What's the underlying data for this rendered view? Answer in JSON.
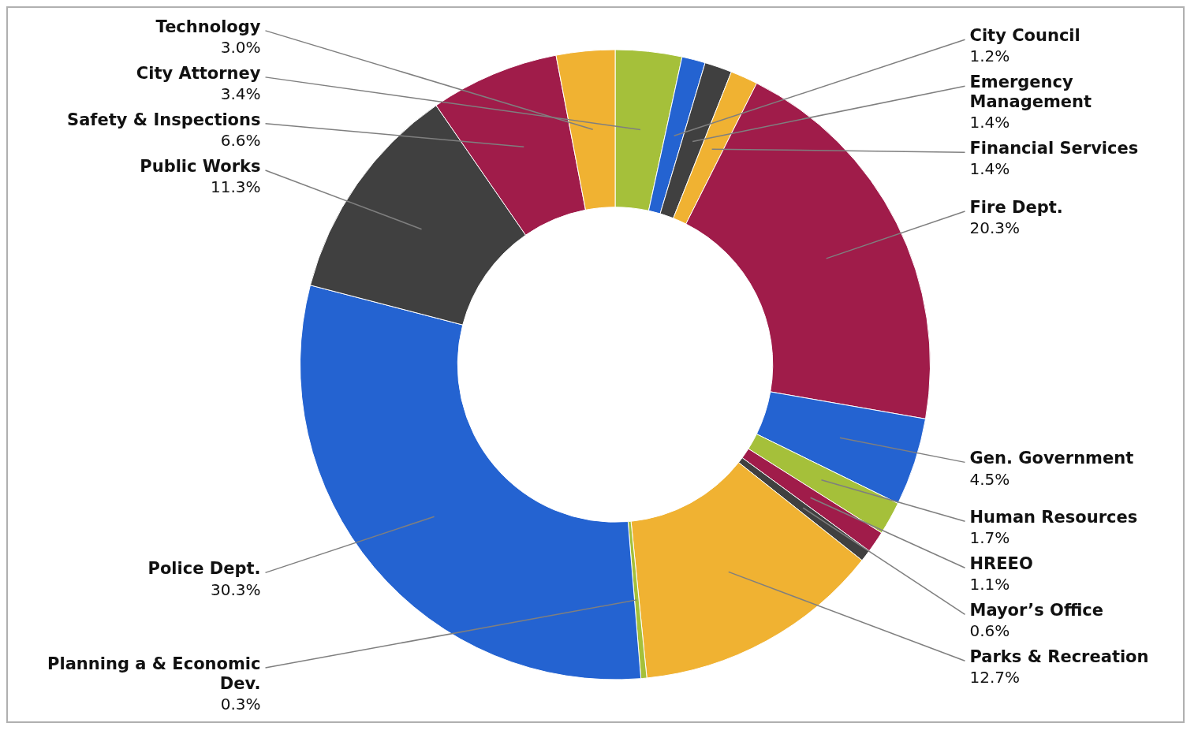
{
  "chart_data": {
    "type": "donut",
    "categories": [
      "City Attorney",
      "City Council",
      "Emergency Management",
      "Financial Services",
      "Fire Dept.",
      "Gen. Government",
      "Human Resources",
      "HREEO",
      "Mayor’s Office",
      "Parks & Recreation",
      "Planning a & Economic Dev.",
      "Police Dept.",
      "Public Works",
      "Safety & Inspections",
      "Technology"
    ],
    "values": [
      3.4,
      1.2,
      1.4,
      1.4,
      20.3,
      4.5,
      1.7,
      1.1,
      0.6,
      12.7,
      0.3,
      30.3,
      11.3,
      6.6,
      3.0
    ],
    "value_labels": [
      "3.4%",
      "1.2%",
      "1.4%",
      "1.4%",
      "20.3%",
      "4.5%",
      "1.7%",
      "1.1%",
      "0.6%",
      "12.7%",
      "0.3%",
      "30.3%",
      "11.3%",
      "6.6%",
      "3.0%"
    ],
    "colors": [
      "#a5c03a",
      "#2463d1",
      "#404040",
      "#f0b232",
      "#a01c4a",
      "#2463d1",
      "#a5c03a",
      "#a01c4a",
      "#404040",
      "#f0b232",
      "#a5c03a",
      "#2463d1",
      "#404040",
      "#a01c4a",
      "#f0b232"
    ],
    "legend": false
  }
}
